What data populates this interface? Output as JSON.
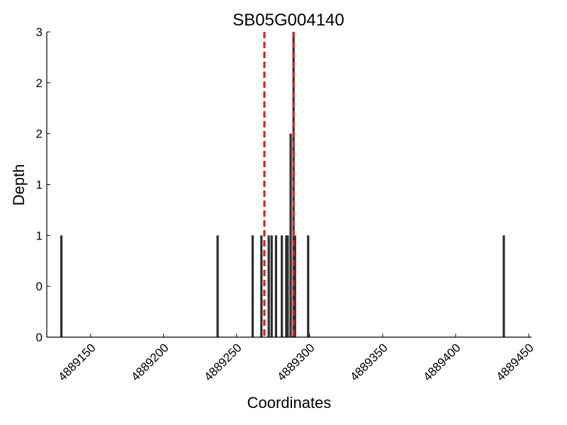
{
  "chart_data": {
    "type": "bar",
    "title": "SB05G004140",
    "xlabel": "Coordinates",
    "ylabel": "Depth",
    "xlim": [
      4889120,
      4889452
    ],
    "ylim": [
      0,
      3
    ],
    "x_ticks": [
      4889150,
      4889200,
      4889250,
      4889300,
      4889350,
      4889400,
      4889450
    ],
    "x_tick_labels": [
      "4889150",
      "4889200",
      "4889250",
      "4889300",
      "4889350",
      "4889400",
      "4889450"
    ],
    "y_ticks": [
      0,
      0.5,
      1,
      1.5,
      2,
      2.5,
      3
    ],
    "y_tick_labels": [
      "0",
      "0",
      "1",
      "1",
      "2",
      "2",
      "3"
    ],
    "bars": [
      {
        "x": 4889130,
        "depth": 1
      },
      {
        "x": 4889237,
        "depth": 1
      },
      {
        "x": 4889261,
        "depth": 1
      },
      {
        "x": 4889267,
        "depth": 1
      },
      {
        "x": 4889272,
        "depth": 1
      },
      {
        "x": 4889274,
        "depth": 1
      },
      {
        "x": 4889277,
        "depth": 1
      },
      {
        "x": 4889281,
        "depth": 1
      },
      {
        "x": 4889284,
        "depth": 1
      },
      {
        "x": 4889285,
        "depth": 1
      },
      {
        "x": 4889287,
        "depth": 2
      },
      {
        "x": 4889289,
        "depth": 3
      },
      {
        "x": 4889290,
        "depth": 1
      },
      {
        "x": 4889299,
        "depth": 1
      },
      {
        "x": 4889433,
        "depth": 1
      }
    ],
    "reference_lines": [
      {
        "x": 4889269,
        "color": "#e31a1c",
        "style": "dashed"
      },
      {
        "x": 4889289,
        "color": "#e31a1c",
        "style": "dashed"
      }
    ],
    "grid": false
  }
}
